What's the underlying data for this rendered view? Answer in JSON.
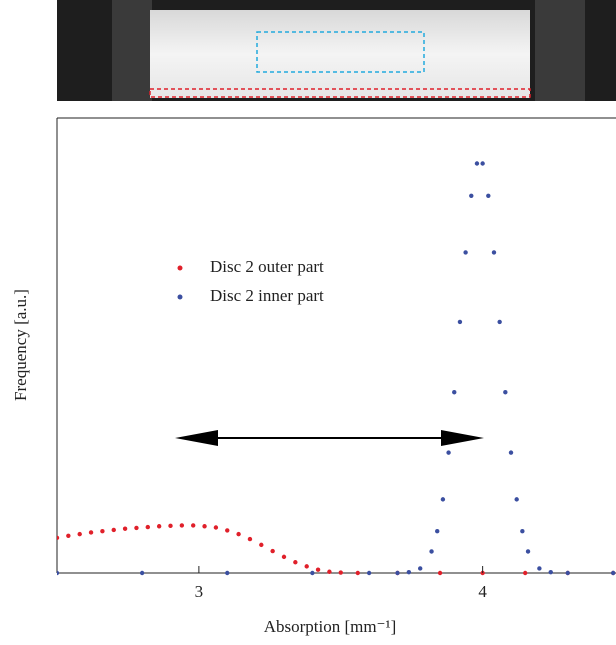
{
  "chart_data": {
    "type": "scatter",
    "xlabel": "Absorption [mm⁻¹]",
    "ylabel": "Frequency [a.u.]",
    "xlim": [
      2.5,
      4.47
    ],
    "xticks": [
      3,
      4
    ],
    "ylim": [
      0,
      1.1
    ],
    "legend": "upper left",
    "series": [
      {
        "name": "Disc 2 outer part",
        "color": "#e0202a",
        "x": [
          2.5,
          2.54,
          2.58,
          2.62,
          2.66,
          2.7,
          2.74,
          2.78,
          2.82,
          2.86,
          2.9,
          2.94,
          2.98,
          3.02,
          3.06,
          3.1,
          3.14,
          3.18,
          3.22,
          3.26,
          3.3,
          3.34,
          3.38,
          3.42,
          3.46,
          3.5,
          3.56,
          3.7,
          3.85,
          4.0,
          4.15,
          4.3,
          4.46
        ],
        "values": [
          0.085,
          0.09,
          0.094,
          0.098,
          0.101,
          0.104,
          0.107,
          0.109,
          0.111,
          0.113,
          0.114,
          0.115,
          0.115,
          0.113,
          0.11,
          0.103,
          0.094,
          0.082,
          0.068,
          0.053,
          0.039,
          0.026,
          0.016,
          0.008,
          0.003,
          0.001,
          0,
          0,
          0,
          0,
          0,
          0,
          0
        ]
      },
      {
        "name": "Disc 2 inner part",
        "color": "#3b4fa0",
        "x": [
          2.5,
          2.8,
          3.1,
          3.4,
          3.6,
          3.7,
          3.74,
          3.78,
          3.82,
          3.84,
          3.86,
          3.88,
          3.9,
          3.92,
          3.94,
          3.96,
          3.98,
          4.0,
          4.02,
          4.04,
          4.06,
          4.08,
          4.1,
          4.12,
          4.14,
          4.16,
          4.2,
          4.24,
          4.3,
          4.46
        ],
        "values": [
          0,
          0,
          0,
          0,
          0,
          0,
          0.002,
          0.011,
          0.052,
          0.101,
          0.178,
          0.291,
          0.437,
          0.607,
          0.775,
          0.912,
          0.99,
          0.99,
          0.912,
          0.775,
          0.607,
          0.437,
          0.291,
          0.178,
          0.101,
          0.052,
          0.011,
          0.002,
          0,
          0
        ]
      }
    ]
  }
}
